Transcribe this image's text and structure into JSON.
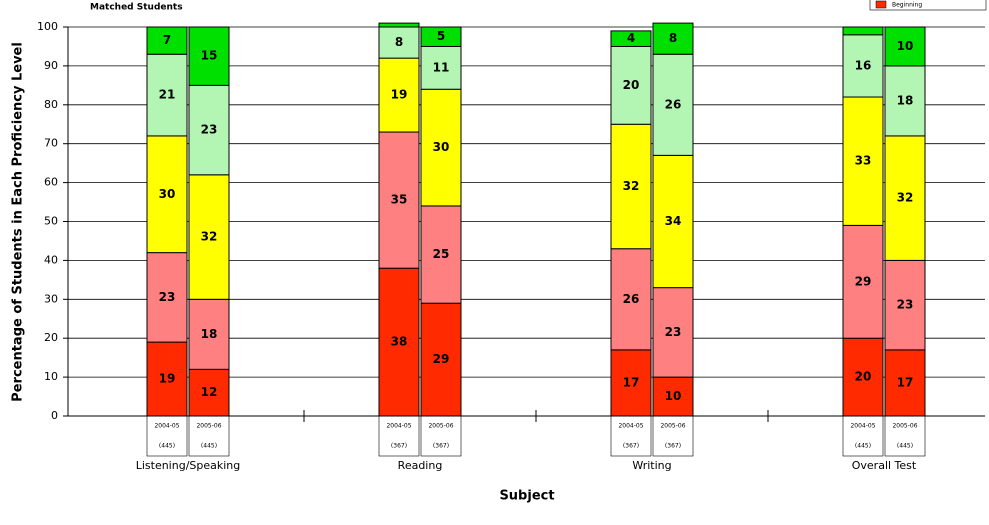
{
  "chart_data": {
    "type": "stacked-bar",
    "note_label": "Matched Students",
    "ylabel": "Percentage of Students in Each Proficiency Level",
    "xlabel": "Subject",
    "groups": [
      "Listening/Speaking",
      "Reading",
      "Writing",
      "Overall Test"
    ],
    "bar_labels": [
      "2004-05",
      "2005-06",
      "2004-05",
      "2005-06",
      "2004-05",
      "2005-06",
      "2004-05",
      "2005-06"
    ],
    "bar_counts": [
      "(445)",
      "(445)",
      "(367)",
      "(367)",
      "(367)",
      "(367)",
      "(445)",
      "(445)"
    ],
    "series": [
      {
        "name": "Beginning",
        "color": "#ff2a00",
        "values": [
          19,
          12,
          38,
          29,
          17,
          10,
          20,
          17
        ]
      },
      {
        "color": "#ff8080",
        "values": [
          23,
          18,
          35,
          25,
          26,
          23,
          29,
          23
        ]
      },
      {
        "color": "#ffff00",
        "values": [
          30,
          32,
          19,
          30,
          32,
          34,
          33,
          32
        ]
      },
      {
        "color": "#b3f5b3",
        "values": [
          21,
          23,
          8,
          11,
          20,
          26,
          16,
          18
        ]
      },
      {
        "color": "#00e000",
        "values": [
          7,
          15,
          1,
          5,
          4,
          8,
          2,
          10
        ]
      }
    ],
    "ylim": [
      0,
      100
    ],
    "yticks": [
      0,
      10,
      20,
      30,
      40,
      50,
      60,
      70,
      80,
      90,
      100
    ],
    "grid": true,
    "legend": "top-right"
  }
}
